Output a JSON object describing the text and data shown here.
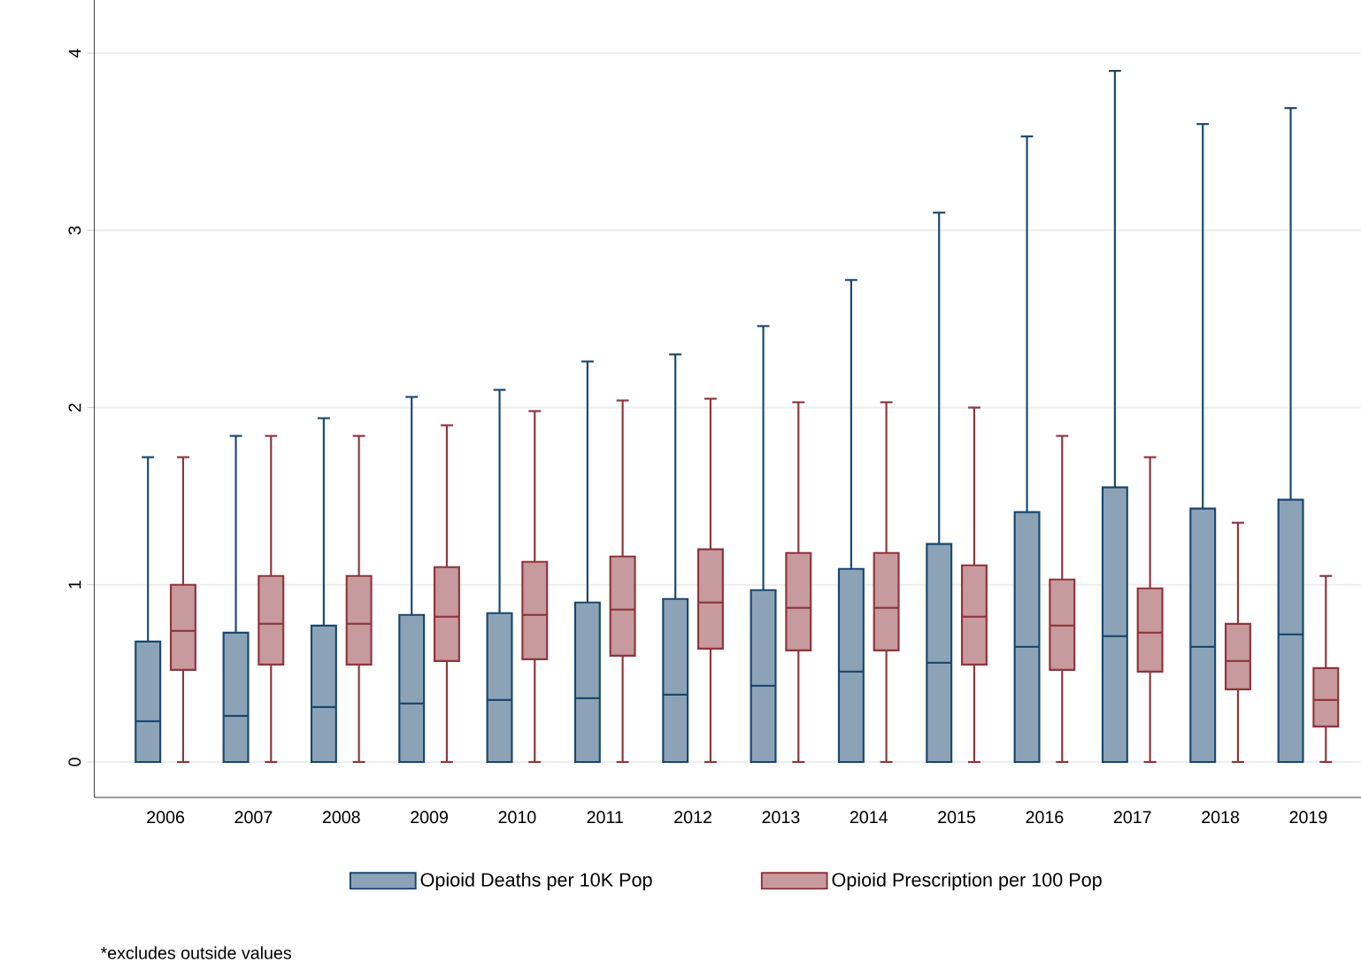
{
  "chart_data": {
    "type": "box",
    "categories": [
      "2006",
      "2007",
      "2008",
      "2009",
      "2010",
      "2011",
      "2012",
      "2013",
      "2014",
      "2015",
      "2016",
      "2017",
      "2018",
      "2019"
    ],
    "ylim": [
      -0.2,
      4.3
    ],
    "yticks": [
      0,
      1,
      2,
      3,
      4
    ],
    "grid": "y",
    "legend": "bottom",
    "annotations": [
      "*excludes outside values"
    ],
    "series": [
      {
        "name": "Opioid Deaths per 10K Pop",
        "color": "#8ca3b7",
        "boxes": [
          {
            "low": 0,
            "q1": 0,
            "median": 0.23,
            "q3": 0.68,
            "high": 1.72
          },
          {
            "low": 0,
            "q1": 0,
            "median": 0.26,
            "q3": 0.73,
            "high": 1.84
          },
          {
            "low": 0,
            "q1": 0,
            "median": 0.31,
            "q3": 0.77,
            "high": 1.94
          },
          {
            "low": 0,
            "q1": 0,
            "median": 0.33,
            "q3": 0.83,
            "high": 2.06
          },
          {
            "low": 0,
            "q1": 0,
            "median": 0.35,
            "q3": 0.84,
            "high": 2.1
          },
          {
            "low": 0,
            "q1": 0,
            "median": 0.36,
            "q3": 0.9,
            "high": 2.26
          },
          {
            "low": 0,
            "q1": 0,
            "median": 0.38,
            "q3": 0.92,
            "high": 2.3
          },
          {
            "low": 0,
            "q1": 0,
            "median": 0.43,
            "q3": 0.97,
            "high": 2.46
          },
          {
            "low": 0,
            "q1": 0,
            "median": 0.51,
            "q3": 1.09,
            "high": 2.72
          },
          {
            "low": 0,
            "q1": 0,
            "median": 0.56,
            "q3": 1.23,
            "high": 3.1
          },
          {
            "low": 0,
            "q1": 0,
            "median": 0.65,
            "q3": 1.41,
            "high": 3.53
          },
          {
            "low": 0,
            "q1": 0,
            "median": 0.71,
            "q3": 1.55,
            "high": 3.9
          },
          {
            "low": 0,
            "q1": 0,
            "median": 0.65,
            "q3": 1.43,
            "high": 3.6
          },
          {
            "low": 0,
            "q1": 0,
            "median": 0.72,
            "q3": 1.48,
            "high": 3.69
          }
        ]
      },
      {
        "name": "Opioid Prescription per 100 Pop",
        "color": "#c79a9d",
        "boxes": [
          {
            "low": 0,
            "q1": 0.52,
            "median": 0.74,
            "q3": 1.0,
            "high": 1.72
          },
          {
            "low": 0,
            "q1": 0.55,
            "median": 0.78,
            "q3": 1.05,
            "high": 1.84
          },
          {
            "low": 0,
            "q1": 0.55,
            "median": 0.78,
            "q3": 1.05,
            "high": 1.84
          },
          {
            "low": 0,
            "q1": 0.57,
            "median": 0.82,
            "q3": 1.1,
            "high": 1.9
          },
          {
            "low": 0,
            "q1": 0.58,
            "median": 0.83,
            "q3": 1.13,
            "high": 1.98
          },
          {
            "low": 0,
            "q1": 0.6,
            "median": 0.86,
            "q3": 1.16,
            "high": 2.04
          },
          {
            "low": 0,
            "q1": 0.64,
            "median": 0.9,
            "q3": 1.2,
            "high": 2.05
          },
          {
            "low": 0,
            "q1": 0.63,
            "median": 0.87,
            "q3": 1.18,
            "high": 2.03
          },
          {
            "low": 0,
            "q1": 0.63,
            "median": 0.87,
            "q3": 1.18,
            "high": 2.03
          },
          {
            "low": 0,
            "q1": 0.55,
            "median": 0.82,
            "q3": 1.11,
            "high": 2.0
          },
          {
            "low": 0,
            "q1": 0.52,
            "median": 0.77,
            "q3": 1.03,
            "high": 1.84
          },
          {
            "low": 0,
            "q1": 0.51,
            "median": 0.73,
            "q3": 0.98,
            "high": 1.72
          },
          {
            "low": 0,
            "q1": 0.41,
            "median": 0.57,
            "q3": 0.78,
            "high": 1.35
          },
          {
            "low": 0,
            "q1": 0.2,
            "median": 0.35,
            "q3": 0.53,
            "high": 1.05
          }
        ]
      }
    ]
  }
}
